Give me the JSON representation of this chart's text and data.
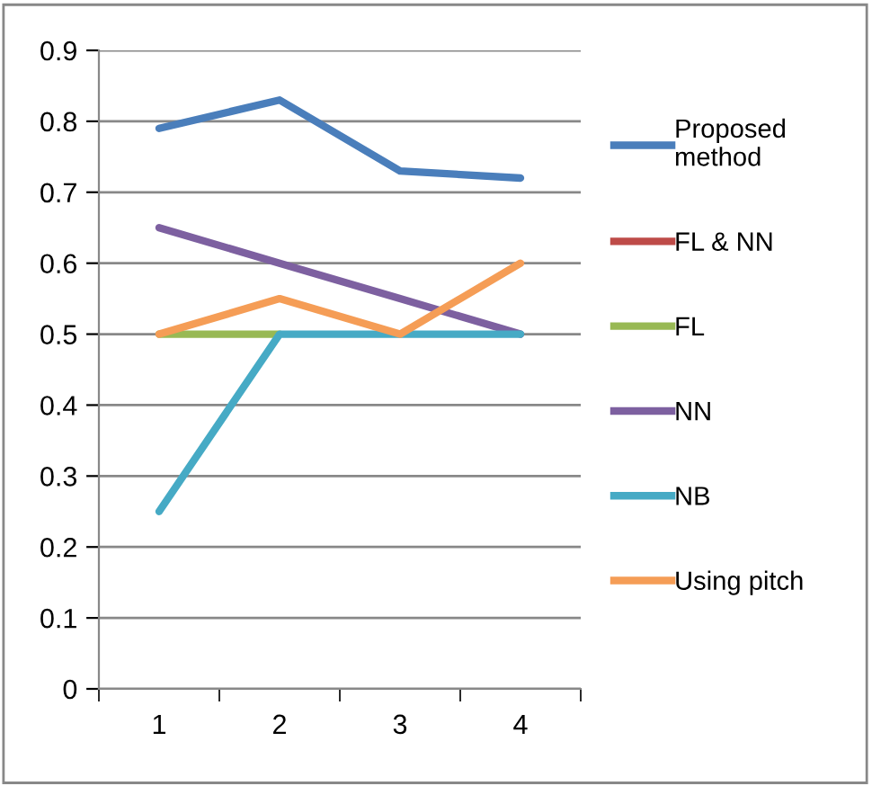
{
  "chart_data": {
    "type": "line",
    "categories": [
      "1",
      "2",
      "3",
      "4"
    ],
    "series": [
      {
        "name": "Proposed method",
        "color": "#4a7ebb",
        "values": [
          0.79,
          0.83,
          0.73,
          0.72
        ]
      },
      {
        "name": "FL & NN",
        "color": "#be4b48",
        "values": [
          null,
          null,
          null,
          null
        ]
      },
      {
        "name": "FL",
        "color": "#98b954",
        "values": [
          0.5,
          0.5,
          null,
          null
        ]
      },
      {
        "name": "NN",
        "color": "#7d60a0",
        "values": [
          0.65,
          0.6,
          0.55,
          0.5
        ]
      },
      {
        "name": "NB",
        "color": "#46aac5",
        "values": [
          0.25,
          0.5,
          0.5,
          0.5
        ]
      },
      {
        "name": "Using pitch",
        "color": "#f59d56",
        "values": [
          0.5,
          0.55,
          0.5,
          0.6
        ]
      }
    ],
    "ylim": [
      0,
      0.9
    ],
    "yticks": [
      0,
      0.1,
      0.2,
      0.3,
      0.4,
      0.5,
      0.6,
      0.7,
      0.8,
      0.9
    ],
    "grid": "y",
    "legend": "right",
    "marker": "none",
    "line_style": "solid"
  }
}
